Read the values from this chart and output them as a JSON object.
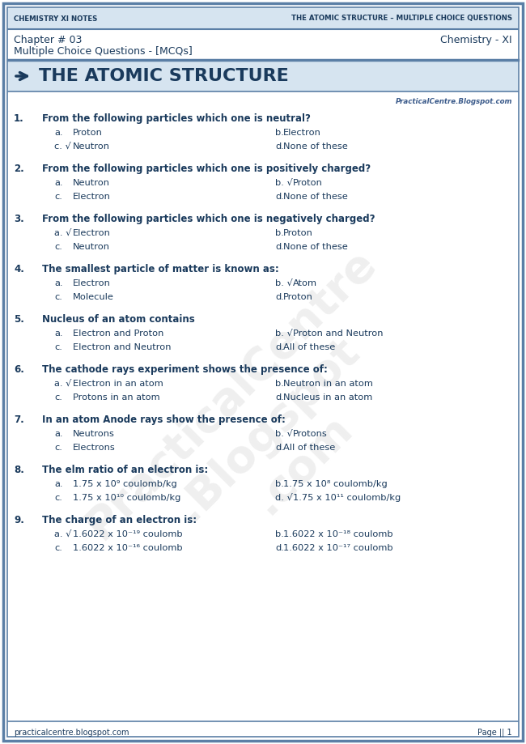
{
  "page_bg": "#ffffff",
  "border_color": "#5b7fa6",
  "header_text_color": "#1a3a5c",
  "title_color": "#1a3a5c",
  "question_color": "#1a3a5c",
  "header_left": "Chemistry XI Notes",
  "header_right": "The Atomic Structure – Multiple Choice Questions",
  "subheader_left": "Chapter # 03",
  "subheader_right": "Chemistry - XI",
  "subheader2": "Multiple Choice Questions - [MCQs]",
  "website": "PracticalCentre.Blogspot.com",
  "footer_left": "practicalcentre.blogspot.com",
  "footer_right": "Page || 1",
  "questions": [
    {
      "num": "1.",
      "question": "From the following particles which one is neutral?",
      "options": [
        [
          "a.",
          "Proton",
          "b.",
          "Electron"
        ],
        [
          "c. √",
          "Neutron",
          "d.",
          "None of these"
        ]
      ]
    },
    {
      "num": "2.",
      "question": "From the following particles which one is positively charged?",
      "options": [
        [
          "a.",
          "Neutron",
          "b. √",
          "Proton"
        ],
        [
          "c.",
          "Electron",
          "d.",
          "None of these"
        ]
      ]
    },
    {
      "num": "3.",
      "question": "From the following particles which one is negatively charged?",
      "options": [
        [
          "a. √",
          "Electron",
          "b.",
          "Proton"
        ],
        [
          "c.",
          "Neutron",
          "d.",
          "None of these"
        ]
      ]
    },
    {
      "num": "4.",
      "question": "The smallest particle of matter is known as:",
      "options": [
        [
          "a.",
          "Electron",
          "b. √",
          "Atom"
        ],
        [
          "c.",
          "Molecule",
          "d.",
          "Proton"
        ]
      ]
    },
    {
      "num": "5.",
      "question": "Nucleus of an atom contains",
      "options": [
        [
          "a.",
          "Electron and Proton",
          "b. √",
          "Proton and Neutron"
        ],
        [
          "c.",
          "Electron and Neutron",
          "d.",
          "All of these"
        ]
      ]
    },
    {
      "num": "6.",
      "question": "The cathode rays experiment shows the presence of:",
      "options": [
        [
          "a. √",
          "Electron in an atom",
          "b.",
          "Neutron in an atom"
        ],
        [
          "c.",
          "Protons in an atom",
          "d.",
          "Nucleus in an atom"
        ]
      ]
    },
    {
      "num": "7.",
      "question": "In an atom Anode rays show the presence of:",
      "options": [
        [
          "a.",
          "Neutrons",
          "b. √",
          "Protons"
        ],
        [
          "c.",
          "Electrons",
          "d.",
          "All of these"
        ]
      ]
    },
    {
      "num": "8.",
      "question": "The elm ratio of an electron is:",
      "options": [
        [
          "a.",
          "1.75 x 10⁹ coulomb/kg",
          "b.",
          "1.75 x 10⁸ coulomb/kg"
        ],
        [
          "c.",
          "1.75 x 10¹⁰ coulomb/kg",
          "d. √",
          "1.75 x 10¹¹ coulomb/kg"
        ]
      ]
    },
    {
      "num": "9.",
      "question": "The charge of an electron is:",
      "options": [
        [
          "a. √",
          "1.6022 x 10⁻¹⁹ coulomb",
          "b.",
          "1.6022 x 10⁻¹⁸ coulomb"
        ],
        [
          "c.",
          "1.6022 x 10⁻¹⁶ coulomb",
          "d.",
          "1.6022 x 10⁻¹⁷ coulomb"
        ]
      ]
    }
  ]
}
